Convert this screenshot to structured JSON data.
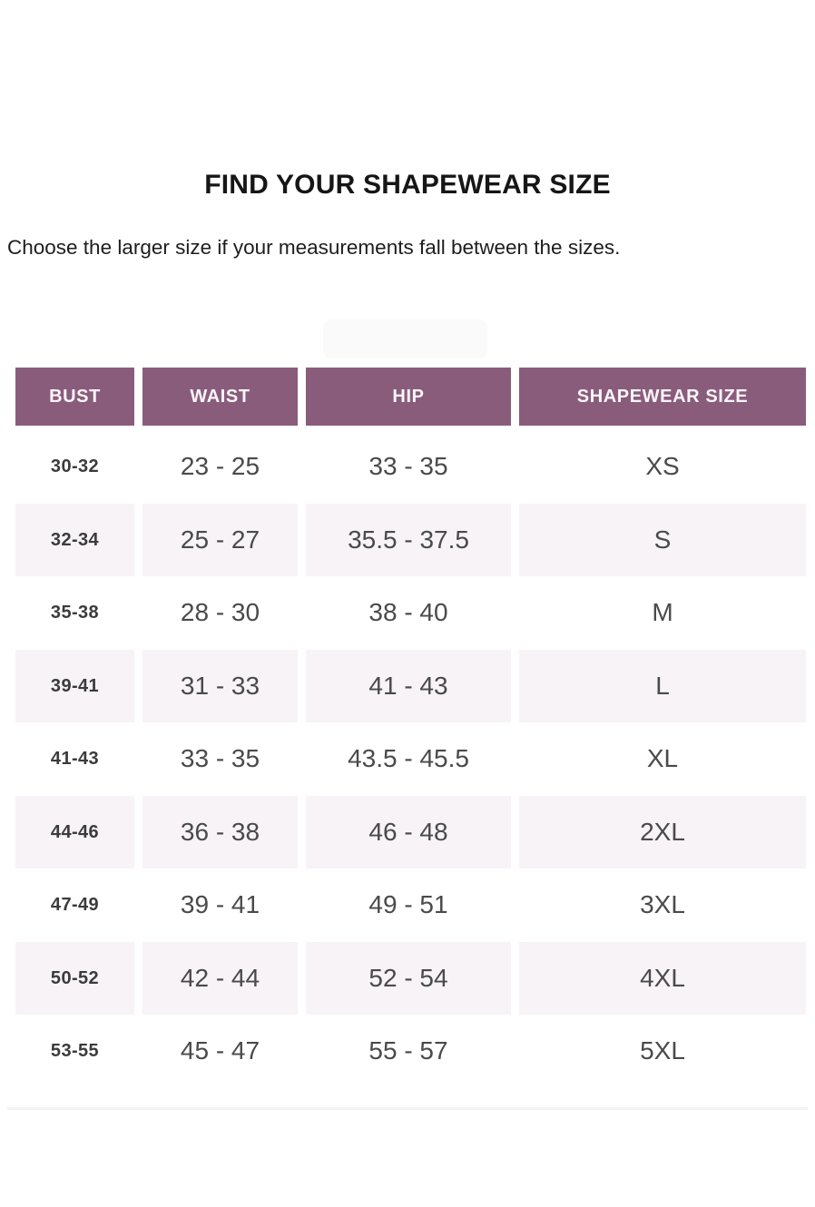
{
  "page": {
    "title": "FIND YOUR SHAPEWEAR SIZE",
    "subtitle": "Choose the larger size if your measurements fall between the sizes."
  },
  "table": {
    "columns": [
      "BUST",
      "WAIST",
      "HIP",
      "SHAPEWEAR SIZE"
    ],
    "rows": [
      {
        "bust": "30-32",
        "waist": "23 - 25",
        "hip": "33 - 35",
        "size": "XS"
      },
      {
        "bust": "32-34",
        "waist": "25 - 27",
        "hip": "35.5 - 37.5",
        "size": "S"
      },
      {
        "bust": "35-38",
        "waist": "28 - 30",
        "hip": "38 - 40",
        "size": "M"
      },
      {
        "bust": "39-41",
        "waist": "31 - 33",
        "hip": "41 - 43",
        "size": "L"
      },
      {
        "bust": "41-43",
        "waist": "33 - 35",
        "hip": "43.5 - 45.5",
        "size": "XL"
      },
      {
        "bust": "44-46",
        "waist": "36 - 38",
        "hip": "46 - 48",
        "size": "2XL"
      },
      {
        "bust": "47-49",
        "waist": "39 - 41",
        "hip": "49 - 51",
        "size": "3XL"
      },
      {
        "bust": "50-52",
        "waist": "42 - 44",
        "hip": "52 - 54",
        "size": "4XL"
      },
      {
        "bust": "53-55",
        "waist": "45 - 47",
        "hip": "55 - 57",
        "size": "5XL"
      }
    ]
  },
  "colors": {
    "header_bg": "#8a5c7c",
    "header_text": "#fbf6f9",
    "alt_row_bg": "#f7f3f6",
    "body_text": "#4a4a4a",
    "bust_text": "#3b3b3b",
    "title_text": "#161616"
  }
}
